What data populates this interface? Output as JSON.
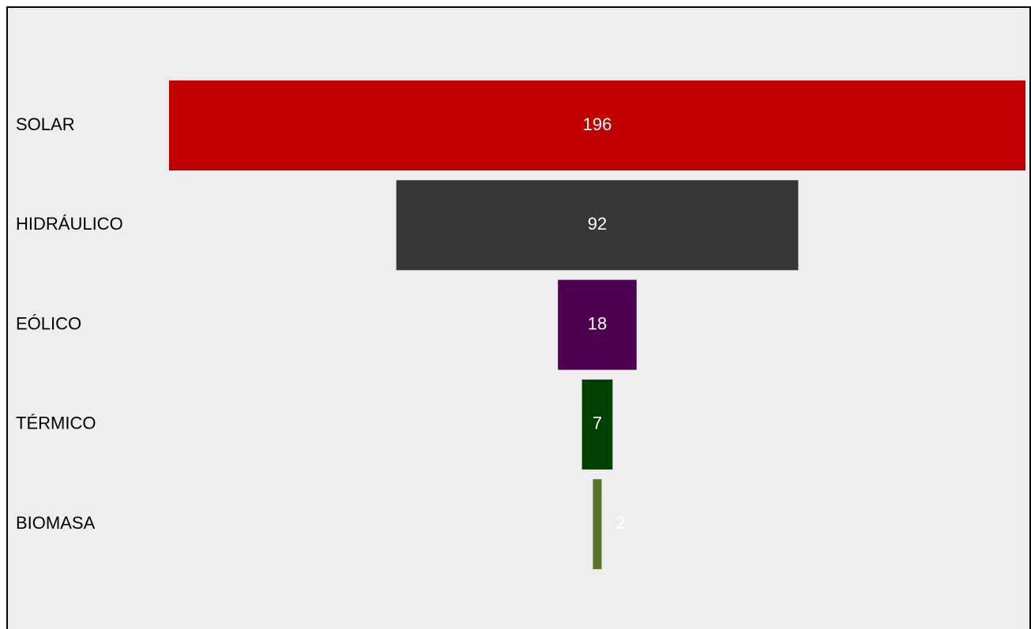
{
  "chart_data": {
    "type": "funnel",
    "categories": [
      "SOLAR",
      "HIDRÁULICO",
      "EÓLICO",
      "TÉRMICO",
      "BIOMASA"
    ],
    "values": [
      196,
      92,
      18,
      7,
      2
    ],
    "colors": [
      "#c00000",
      "#363636",
      "#4d004f",
      "#004000",
      "#5a7329"
    ]
  }
}
